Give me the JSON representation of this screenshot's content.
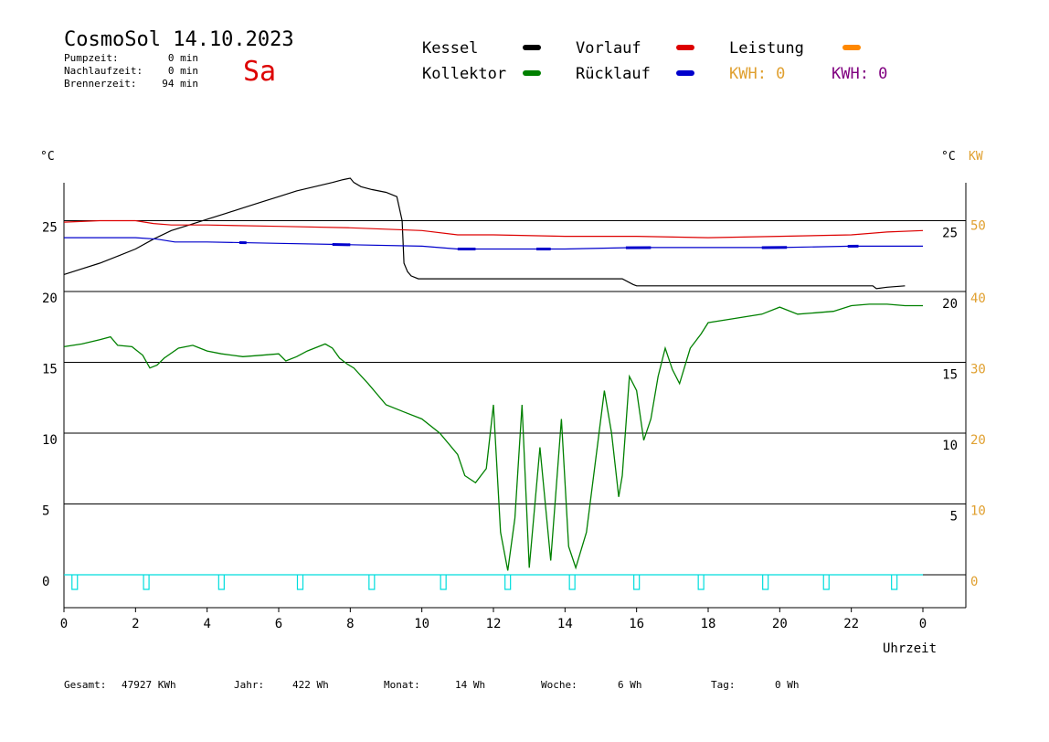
{
  "header": {
    "title": "CosmoSol 14.10.2023",
    "day": "Sa",
    "stats": [
      {
        "label": "Pumpzeit:",
        "value": "0 min"
      },
      {
        "label": "Nachlaufzeit:",
        "value": "0 min"
      },
      {
        "label": "Brennerzeit:",
        "value": "94 min"
      }
    ]
  },
  "legend": {
    "items": [
      {
        "label": "Kessel",
        "color": "#000000"
      },
      {
        "label": "Vorlauf",
        "color": "#dd0000"
      },
      {
        "label": "Leistung",
        "color": "#ff8800"
      },
      {
        "label": "Kollektor",
        "color": "#008000"
      },
      {
        "label": "Rücklauf",
        "color": "#0000cc"
      }
    ],
    "kwh": [
      {
        "label": "KWH: 0",
        "color": "#e0a030"
      },
      {
        "label": "KWH: 0",
        "color": "#800080"
      }
    ]
  },
  "axes": {
    "left_unit": "°C",
    "right_unit_1": "°C",
    "right_unit_2": "KW",
    "x_label": "Uhrzeit",
    "x_ticks": [
      "0",
      "2",
      "4",
      "6",
      "8",
      "10",
      "12",
      "14",
      "16",
      "18",
      "20",
      "22",
      "0"
    ],
    "y_left_ticks": [
      "0",
      "5",
      "10",
      "15",
      "20",
      "25"
    ],
    "y_right_ticks": [
      "5",
      "10",
      "15",
      "20",
      "25"
    ],
    "kw_ticks": [
      "0",
      "10",
      "20",
      "30",
      "40",
      "50"
    ]
  },
  "footer": [
    {
      "label": "Gesamt:",
      "value": "47927 KWh"
    },
    {
      "label": "Jahr:",
      "value": "422 Wh"
    },
    {
      "label": "Monat:",
      "value": "14 Wh"
    },
    {
      "label": "Woche:",
      "value": "6 Wh"
    },
    {
      "label": "Tag:",
      "value": "0 Wh"
    }
  ],
  "chart_data": {
    "type": "line",
    "xlabel": "Uhrzeit",
    "ylabel": "°C",
    "xlim": [
      0,
      24
    ],
    "ylim": [
      -1.7,
      27.5
    ],
    "y2label": "KW",
    "y2lim": [
      -3.4,
      55
    ],
    "grid": true,
    "series": [
      {
        "name": "Kessel",
        "color": "#000000",
        "x": [
          0,
          0.5,
          1,
          1.5,
          2,
          2.5,
          3,
          3.5,
          4,
          4.5,
          5,
          5.5,
          6,
          6.5,
          7,
          7.5,
          7.8,
          8,
          8.1,
          8.3,
          8.6,
          9,
          9.3,
          9.45,
          9.5,
          9.6,
          9.7,
          9.9,
          10.5,
          12,
          14,
          15.6,
          15.9,
          16,
          16.5,
          18,
          20,
          21,
          22.6,
          22.7,
          23,
          23.5
        ],
        "y": [
          21.2,
          21.6,
          22.0,
          22.5,
          23.0,
          23.7,
          24.3,
          24.7,
          25.1,
          25.5,
          25.9,
          26.3,
          26.7,
          27.1,
          27.4,
          27.7,
          27.9,
          28.0,
          27.7,
          27.4,
          27.2,
          27.0,
          26.7,
          25.0,
          22.0,
          21.4,
          21.1,
          20.9,
          20.9,
          20.9,
          20.9,
          20.9,
          20.5,
          20.4,
          20.4,
          20.4,
          20.4,
          20.4,
          20.4,
          20.2,
          20.3,
          20.4
        ]
      },
      {
        "name": "Vorlauf",
        "color": "#dd0000",
        "x": [
          0,
          1,
          2,
          2.5,
          3,
          4,
          6,
          8,
          10,
          11,
          12,
          14,
          16,
          18,
          20,
          22,
          23,
          24
        ],
        "y": [
          24.9,
          25.0,
          25.0,
          24.8,
          24.7,
          24.7,
          24.6,
          24.5,
          24.3,
          24.0,
          24.0,
          23.9,
          23.9,
          23.8,
          23.9,
          24.0,
          24.2,
          24.3
        ]
      },
      {
        "name": "Rücklauf",
        "color": "#0000cc",
        "x": [
          0,
          2,
          2.6,
          3.1,
          4,
          6,
          8,
          10,
          11,
          12,
          14,
          16,
          18,
          20,
          22,
          24
        ],
        "y": [
          23.8,
          23.8,
          23.7,
          23.5,
          23.5,
          23.4,
          23.3,
          23.2,
          23.0,
          23.0,
          23.0,
          23.1,
          23.1,
          23.1,
          23.2,
          23.2
        ],
        "thick_segments": [
          [
            4.9,
            5.1
          ],
          [
            7.5,
            8
          ],
          [
            11,
            11.5
          ],
          [
            13.2,
            13.6
          ],
          [
            15.7,
            16.4
          ],
          [
            19.5,
            20.2
          ],
          [
            21.9,
            22.2
          ]
        ]
      },
      {
        "name": "Kollektor",
        "color": "#008000",
        "x": [
          0,
          0.5,
          1,
          1.3,
          1.5,
          1.9,
          2.2,
          2.4,
          2.6,
          2.8,
          3.2,
          3.6,
          3.8,
          4,
          4.4,
          5,
          5.5,
          6,
          6.2,
          6.5,
          6.8,
          7,
          7.3,
          7.5,
          7.7,
          7.9,
          8.1,
          8.5,
          9,
          9.5,
          10,
          10.5,
          11,
          11.2,
          11.5,
          11.8,
          12,
          12.2,
          12.4,
          12.6,
          12.8,
          13,
          13.3,
          13.6,
          13.9,
          14.1,
          14.3,
          14.6,
          14.9,
          15.1,
          15.3,
          15.5,
          15.6,
          15.8,
          16,
          16.2,
          16.4,
          16.6,
          16.8,
          17,
          17.2,
          17.5,
          17.8,
          18,
          18.5,
          19,
          19.5,
          20,
          20.5,
          21,
          21.5,
          22,
          22.5,
          23,
          23.5,
          24
        ],
        "y": [
          16.1,
          16.3,
          16.6,
          16.8,
          16.2,
          16.1,
          15.5,
          14.6,
          14.8,
          15.3,
          16.0,
          16.2,
          16.0,
          15.8,
          15.6,
          15.4,
          15.5,
          15.6,
          15.1,
          15.4,
          15.8,
          16.0,
          16.3,
          16.0,
          15.3,
          14.9,
          14.6,
          13.5,
          12.0,
          11.5,
          11.0,
          10.0,
          8.5,
          7.0,
          6.5,
          7.5,
          12.0,
          3.0,
          0.3,
          4.0,
          12.0,
          0.5,
          9.0,
          1.0,
          11.0,
          2.0,
          0.5,
          3.0,
          9.0,
          13.0,
          10.0,
          5.5,
          7.0,
          14.0,
          13.0,
          9.5,
          11.0,
          14.0,
          16.0,
          14.5,
          13.5,
          16.0,
          17.0,
          17.8,
          18.0,
          18.2,
          18.4,
          18.9,
          18.4,
          18.5,
          18.6,
          19.0,
          19.1,
          19.1,
          19.0,
          19.0
        ]
      },
      {
        "name": "Leistung",
        "color": "#00dddd",
        "x": [
          0,
          24
        ],
        "y": [
          0,
          0
        ],
        "pulses": [
          0.3,
          2.3,
          4.4,
          6.6,
          8.6,
          10.6,
          12.4,
          14.2,
          16.0,
          17.8,
          19.6,
          21.3,
          23.2
        ]
      }
    ]
  }
}
